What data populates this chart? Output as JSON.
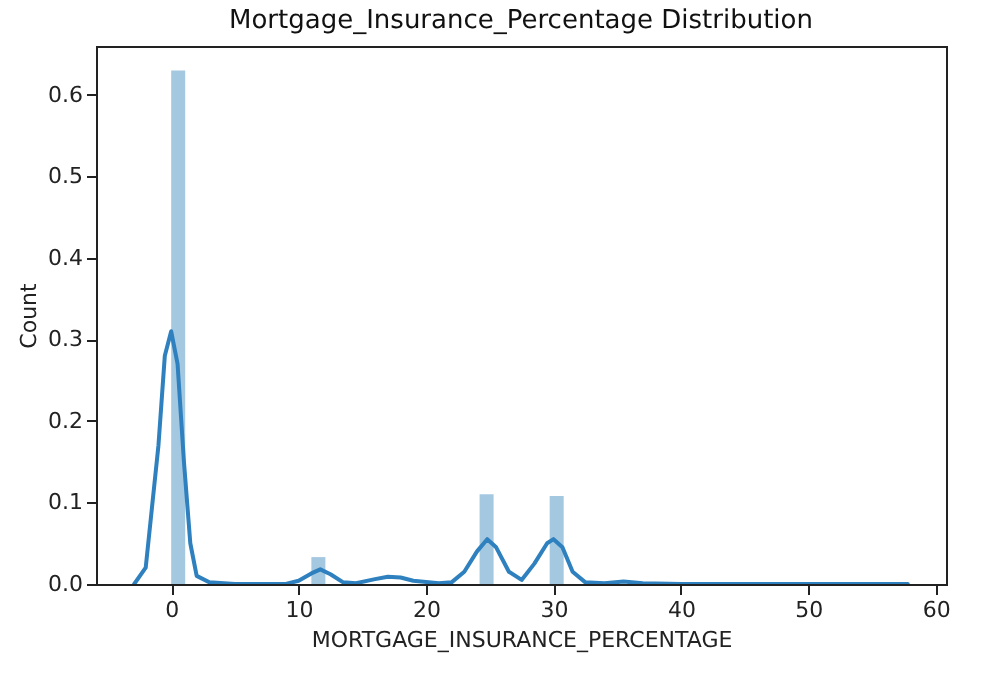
{
  "chart_data": {
    "type": "histogram",
    "title": "Mortgage_Insurance_Percentage Distribution",
    "xlabel": "MORTGAGE_INSURANCE_PERCENTAGE",
    "ylabel": "Count",
    "xlim": [
      -5.9,
      60.8
    ],
    "ylim": [
      0,
      0.66
    ],
    "xticks": [
      0,
      10,
      20,
      30,
      40,
      50,
      60
    ],
    "yticks": [
      {
        "value": 0,
        "label": "0.0"
      },
      0.1,
      0.2,
      0.3,
      0.4,
      0.5,
      0.6
    ],
    "grid": false,
    "series": [
      {
        "type": "histogram",
        "color": "#a5c8e1",
        "bins": [
          0,
          1.1,
          2.2,
          3.3,
          4.4,
          5.5,
          6.6,
          7.7,
          8.8,
          9.9,
          11,
          12.1,
          13.2,
          14.3,
          15.4,
          16.5,
          17.6,
          18.7,
          19.8,
          20.9,
          22,
          23.1,
          24.2,
          25.3,
          26.4,
          27.5,
          28.6,
          29.7,
          30.8,
          31.9,
          33,
          34.1,
          35.2,
          36.3,
          37.4,
          38.5,
          39.6,
          40.7,
          41.8,
          42.9,
          44,
          45.1,
          46.2,
          47.3,
          48.4,
          49.5,
          50.6,
          51.7,
          52.8,
          53.9,
          55
        ],
        "values": [
          0.63,
          0,
          0,
          0,
          0,
          0,
          0,
          0,
          0,
          0,
          0.033,
          0,
          0,
          0,
          0,
          0,
          0,
          0,
          0,
          0,
          0,
          0,
          0.11,
          0,
          0,
          0,
          0,
          0.108,
          0,
          0,
          0,
          0,
          0,
          0,
          0,
          0,
          0,
          0,
          0,
          0,
          0,
          0,
          0,
          0,
          0,
          0,
          0,
          0,
          0,
          0
        ]
      },
      {
        "type": "line",
        "color": "#2e80be",
        "x": [
          -2.9,
          -2,
          -1,
          -0.5,
          0,
          0.5,
          1,
          1.5,
          2,
          3,
          5,
          9,
          10,
          11,
          11.7,
          12.5,
          13.5,
          14.5,
          16,
          17,
          18,
          19,
          21,
          22,
          23,
          24,
          24.8,
          25.5,
          26.5,
          27.5,
          28.5,
          29.5,
          30,
          30.7,
          31.5,
          32.5,
          34,
          35.5,
          37,
          40,
          50,
          57.8
        ],
        "values": [
          0,
          0.02,
          0.17,
          0.28,
          0.31,
          0.27,
          0.15,
          0.05,
          0.01,
          0.002,
          0,
          0,
          0.004,
          0.013,
          0.018,
          0.012,
          0.002,
          0.001,
          0.006,
          0.009,
          0.008,
          0.004,
          0.001,
          0.002,
          0.015,
          0.04,
          0.055,
          0.045,
          0.015,
          0.005,
          0.025,
          0.05,
          0.055,
          0.045,
          0.015,
          0.002,
          0.001,
          0.003,
          0.001,
          0,
          0,
          0
        ]
      }
    ]
  }
}
